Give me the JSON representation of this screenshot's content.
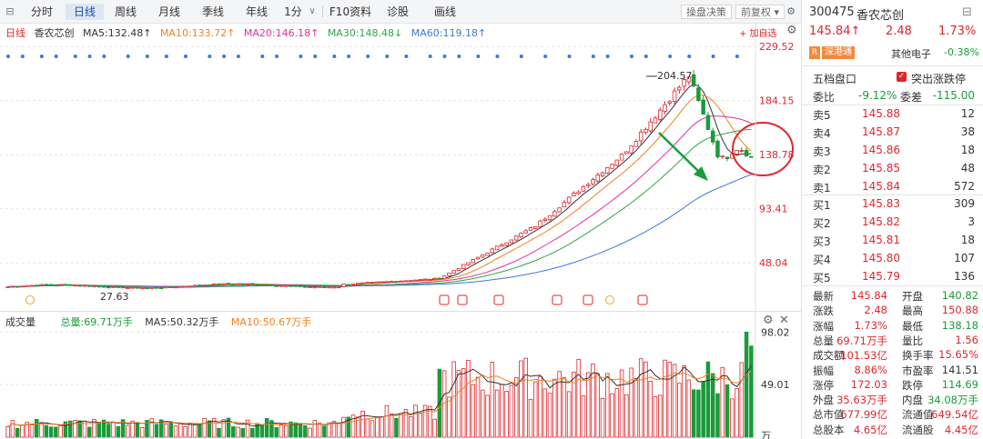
{
  "toolbar": {
    "tabs": [
      "分时",
      "日线",
      "周线",
      "月线",
      "季线",
      "年线",
      "1分",
      "F10资料",
      "诊股",
      "画线"
    ],
    "active_tab": "日线",
    "right_buttons": [
      "操盘决策",
      "前复权"
    ]
  },
  "legend": {
    "period": "日线",
    "name": "香农芯创",
    "ma5": "MA5:132.48↑",
    "ma10": "MA10:133.72↑",
    "ma20": "MA20:146.18↑",
    "ma30": "MA30:148.48↓",
    "ma60": "MA60:119.18↑",
    "add_watch": "+ 加自选"
  },
  "axis": {
    "price_ticks": [
      "229.52",
      "184.15",
      "138.78",
      "93.41",
      "48.04"
    ],
    "high_label": "204.57",
    "low_label": "27.63",
    "vol_ticks": [
      "98.02",
      "49.01",
      "万"
    ]
  },
  "volume_legend": {
    "title": "成交量",
    "total": "总量:69.71万手",
    "ma5": "MA5:50.32万手",
    "ma10": "MA10:50.67万手"
  },
  "quote": {
    "code": "300475",
    "name": "香农芯创",
    "price": "145.84↑",
    "change": "2.48",
    "pct": "1.73%",
    "tag": "深港通",
    "tag2": "R",
    "sector": "其他电子",
    "sector_pct": "-0.38%",
    "book_title": "五档盘口",
    "highlight": "突出涨跌停",
    "ratio_label": "委比",
    "ratio": "-9.12%",
    "diff_label": "委差",
    "diff": "-115.00",
    "asks": [
      {
        "label": "卖5",
        "price": "145.88",
        "vol": "12"
      },
      {
        "label": "卖4",
        "price": "145.87",
        "vol": "38"
      },
      {
        "label": "卖3",
        "price": "145.86",
        "vol": "18"
      },
      {
        "label": "卖2",
        "price": "145.85",
        "vol": "48"
      },
      {
        "label": "卖1",
        "price": "145.84",
        "vol": "572"
      }
    ],
    "bids": [
      {
        "label": "买1",
        "price": "145.83",
        "vol": "309"
      },
      {
        "label": "买2",
        "price": "145.82",
        "vol": "3"
      },
      {
        "label": "买3",
        "price": "145.81",
        "vol": "18"
      },
      {
        "label": "买4",
        "price": "145.80",
        "vol": "107"
      },
      {
        "label": "买5",
        "price": "145.79",
        "vol": "136"
      }
    ],
    "stats": [
      {
        "l1": "最新",
        "v1": "145.84",
        "c1": "r",
        "l2": "开盘",
        "v2": "140.82",
        "c2": "g"
      },
      {
        "l1": "涨跌",
        "v1": "2.48",
        "c1": "r",
        "l2": "最高",
        "v2": "150.88",
        "c2": "r"
      },
      {
        "l1": "涨幅",
        "v1": "1.73%",
        "c1": "r",
        "l2": "最低",
        "v2": "138.18",
        "c2": "g"
      },
      {
        "l1": "总量",
        "v1": "69.71万手",
        "c1": "r",
        "l2": "量比",
        "v2": "1.56",
        "c2": "r"
      },
      {
        "l1": "成交额",
        "v1": "101.53亿",
        "c1": "r",
        "l2": "换手率",
        "v2": "15.65%",
        "c2": "r"
      },
      {
        "l1": "振幅",
        "v1": "8.86%",
        "c1": "r",
        "l2": "市盈率",
        "v2": "141.51",
        "c2": "n"
      },
      {
        "l1": "涨停",
        "v1": "172.03",
        "c1": "r",
        "l2": "跌停",
        "v2": "114.69",
        "c2": "g"
      },
      {
        "l1": "外盘",
        "v1": "35.63万手",
        "c1": "r",
        "l2": "内盘",
        "v2": "34.08万手",
        "c2": "g"
      },
      {
        "l1": "总市值",
        "v1": "677.99亿",
        "c1": "r",
        "l2": "流通值",
        "v2": "649.54亿",
        "c2": "r"
      },
      {
        "l1": "总股本",
        "v1": "4.65亿",
        "c1": "r",
        "l2": "流通股",
        "v2": "4.45亿",
        "c2": "r"
      }
    ]
  },
  "colors": {
    "up": "#e0262c",
    "down": "#1a9b3a",
    "ma5": "#333333",
    "ma10": "#f0801f",
    "ma20": "#e0309a",
    "ma30": "#2ca84a",
    "ma60": "#3a7bd5"
  }
}
